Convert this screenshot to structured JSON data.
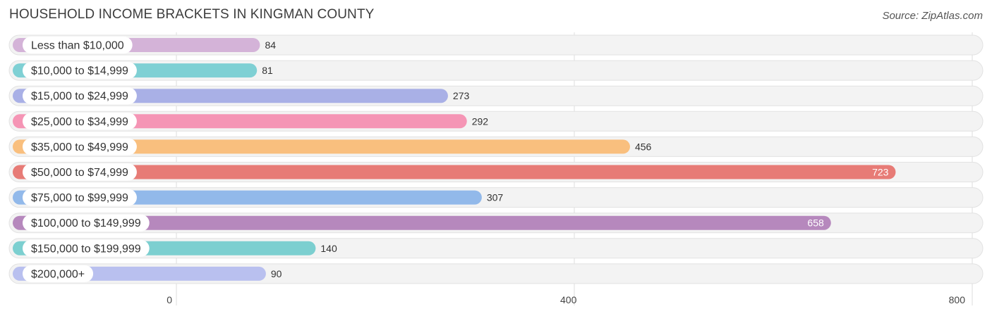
{
  "title": "HOUSEHOLD INCOME BRACKETS IN KINGMAN COUNTY",
  "source": "Source: ZipAtlas.com",
  "chart_data": {
    "type": "bar",
    "orientation": "horizontal",
    "categories": [
      "Less than $10,000",
      "$10,000 to $14,999",
      "$15,000 to $24,999",
      "$25,000 to $34,999",
      "$35,000 to $49,999",
      "$50,000 to $74,999",
      "$75,000 to $99,999",
      "$100,000 to $149,999",
      "$150,000 to $199,999",
      "$200,000+"
    ],
    "values": [
      84,
      81,
      273,
      292,
      456,
      723,
      307,
      658,
      140,
      90
    ],
    "colors": [
      "#d4b3d8",
      "#7fd0d4",
      "#a9b0e6",
      "#f595b5",
      "#f9bf7e",
      "#e77b76",
      "#92b9ea",
      "#b688bd",
      "#7ccfd0",
      "#b9c0ef"
    ],
    "xticks": [
      0,
      400,
      800
    ],
    "xlim": [
      0,
      800
    ],
    "grid": true
  }
}
